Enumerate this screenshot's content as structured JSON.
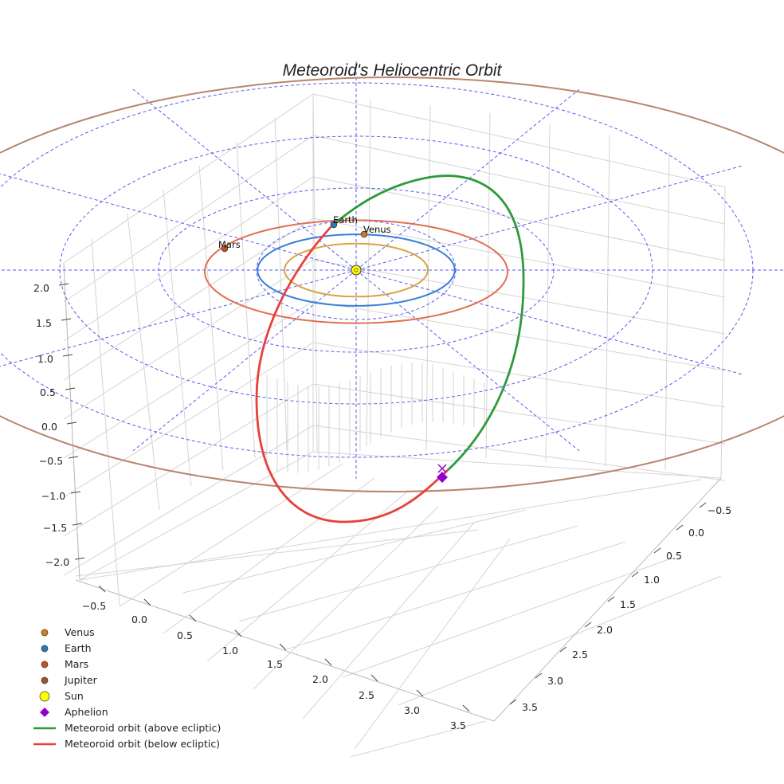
{
  "chart_data": {
    "type": "line-3d",
    "title": "Meteoroid's Heliocentric Orbit",
    "axes": {
      "x_ticks": [
        "−0.5",
        "0.0",
        "0.5",
        "1.0",
        "1.5",
        "2.0",
        "2.5",
        "3.0",
        "3.5"
      ],
      "y_ticks": [
        "−0.5",
        "0.0",
        "0.5",
        "1.0",
        "1.5",
        "2.0",
        "2.5",
        "3.0",
        "3.5"
      ],
      "z_ticks": [
        "2.0",
        "1.5",
        "1.0",
        "0.5",
        "0.0",
        "−0.5",
        "−1.0",
        "−1.5",
        "−2.0"
      ],
      "grid": true
    },
    "planets": [
      {
        "name": "Venus",
        "orbit_radius_au": 0.72,
        "color": "#d9a441",
        "marker_color": "#d97a1a",
        "label": "Venus"
      },
      {
        "name": "Earth",
        "orbit_radius_au": 1.0,
        "color": "#3a7fd5",
        "marker_color": "#2a7ab9",
        "label": "Earth"
      },
      {
        "name": "Mars",
        "orbit_radius_au": 1.52,
        "color": "#e07050",
        "marker_color": "#c8501f",
        "label": "Mars"
      },
      {
        "name": "Jupiter",
        "orbit_radius_au": 5.2,
        "color": "#b8866a",
        "marker_color": "#a0522d",
        "label": ""
      }
    ],
    "sun": {
      "name": "Sun",
      "color": "#ffff00"
    },
    "aphelion": {
      "name": "Aphelion",
      "color": "#9400d3"
    },
    "series": [
      {
        "name": "Meteoroid orbit (above ecliptic)",
        "color": "#2e9a3a"
      },
      {
        "name": "Meteoroid orbit (below ecliptic)",
        "color": "#e8403a"
      }
    ],
    "ecliptic_grid": {
      "style": "dashed",
      "color": "#5555ee"
    },
    "legend": {
      "placement": "bottom-left",
      "entries": [
        {
          "label": "Venus",
          "kind": "marker",
          "color": "#d97a1a"
        },
        {
          "label": "Earth",
          "kind": "marker",
          "color": "#2a7ab9"
        },
        {
          "label": "Mars",
          "kind": "marker",
          "color": "#c8501f"
        },
        {
          "label": "Jupiter",
          "kind": "marker",
          "color": "#a0522d"
        },
        {
          "label": "Sun",
          "kind": "sun",
          "color": "#ffff00"
        },
        {
          "label": "Aphelion",
          "kind": "diamond",
          "color": "#9400d3"
        },
        {
          "label": "Meteoroid orbit (above ecliptic)",
          "kind": "line",
          "color": "#2e9a3a"
        },
        {
          "label": "Meteoroid orbit (below ecliptic)",
          "kind": "line",
          "color": "#e8403a"
        }
      ]
    }
  }
}
